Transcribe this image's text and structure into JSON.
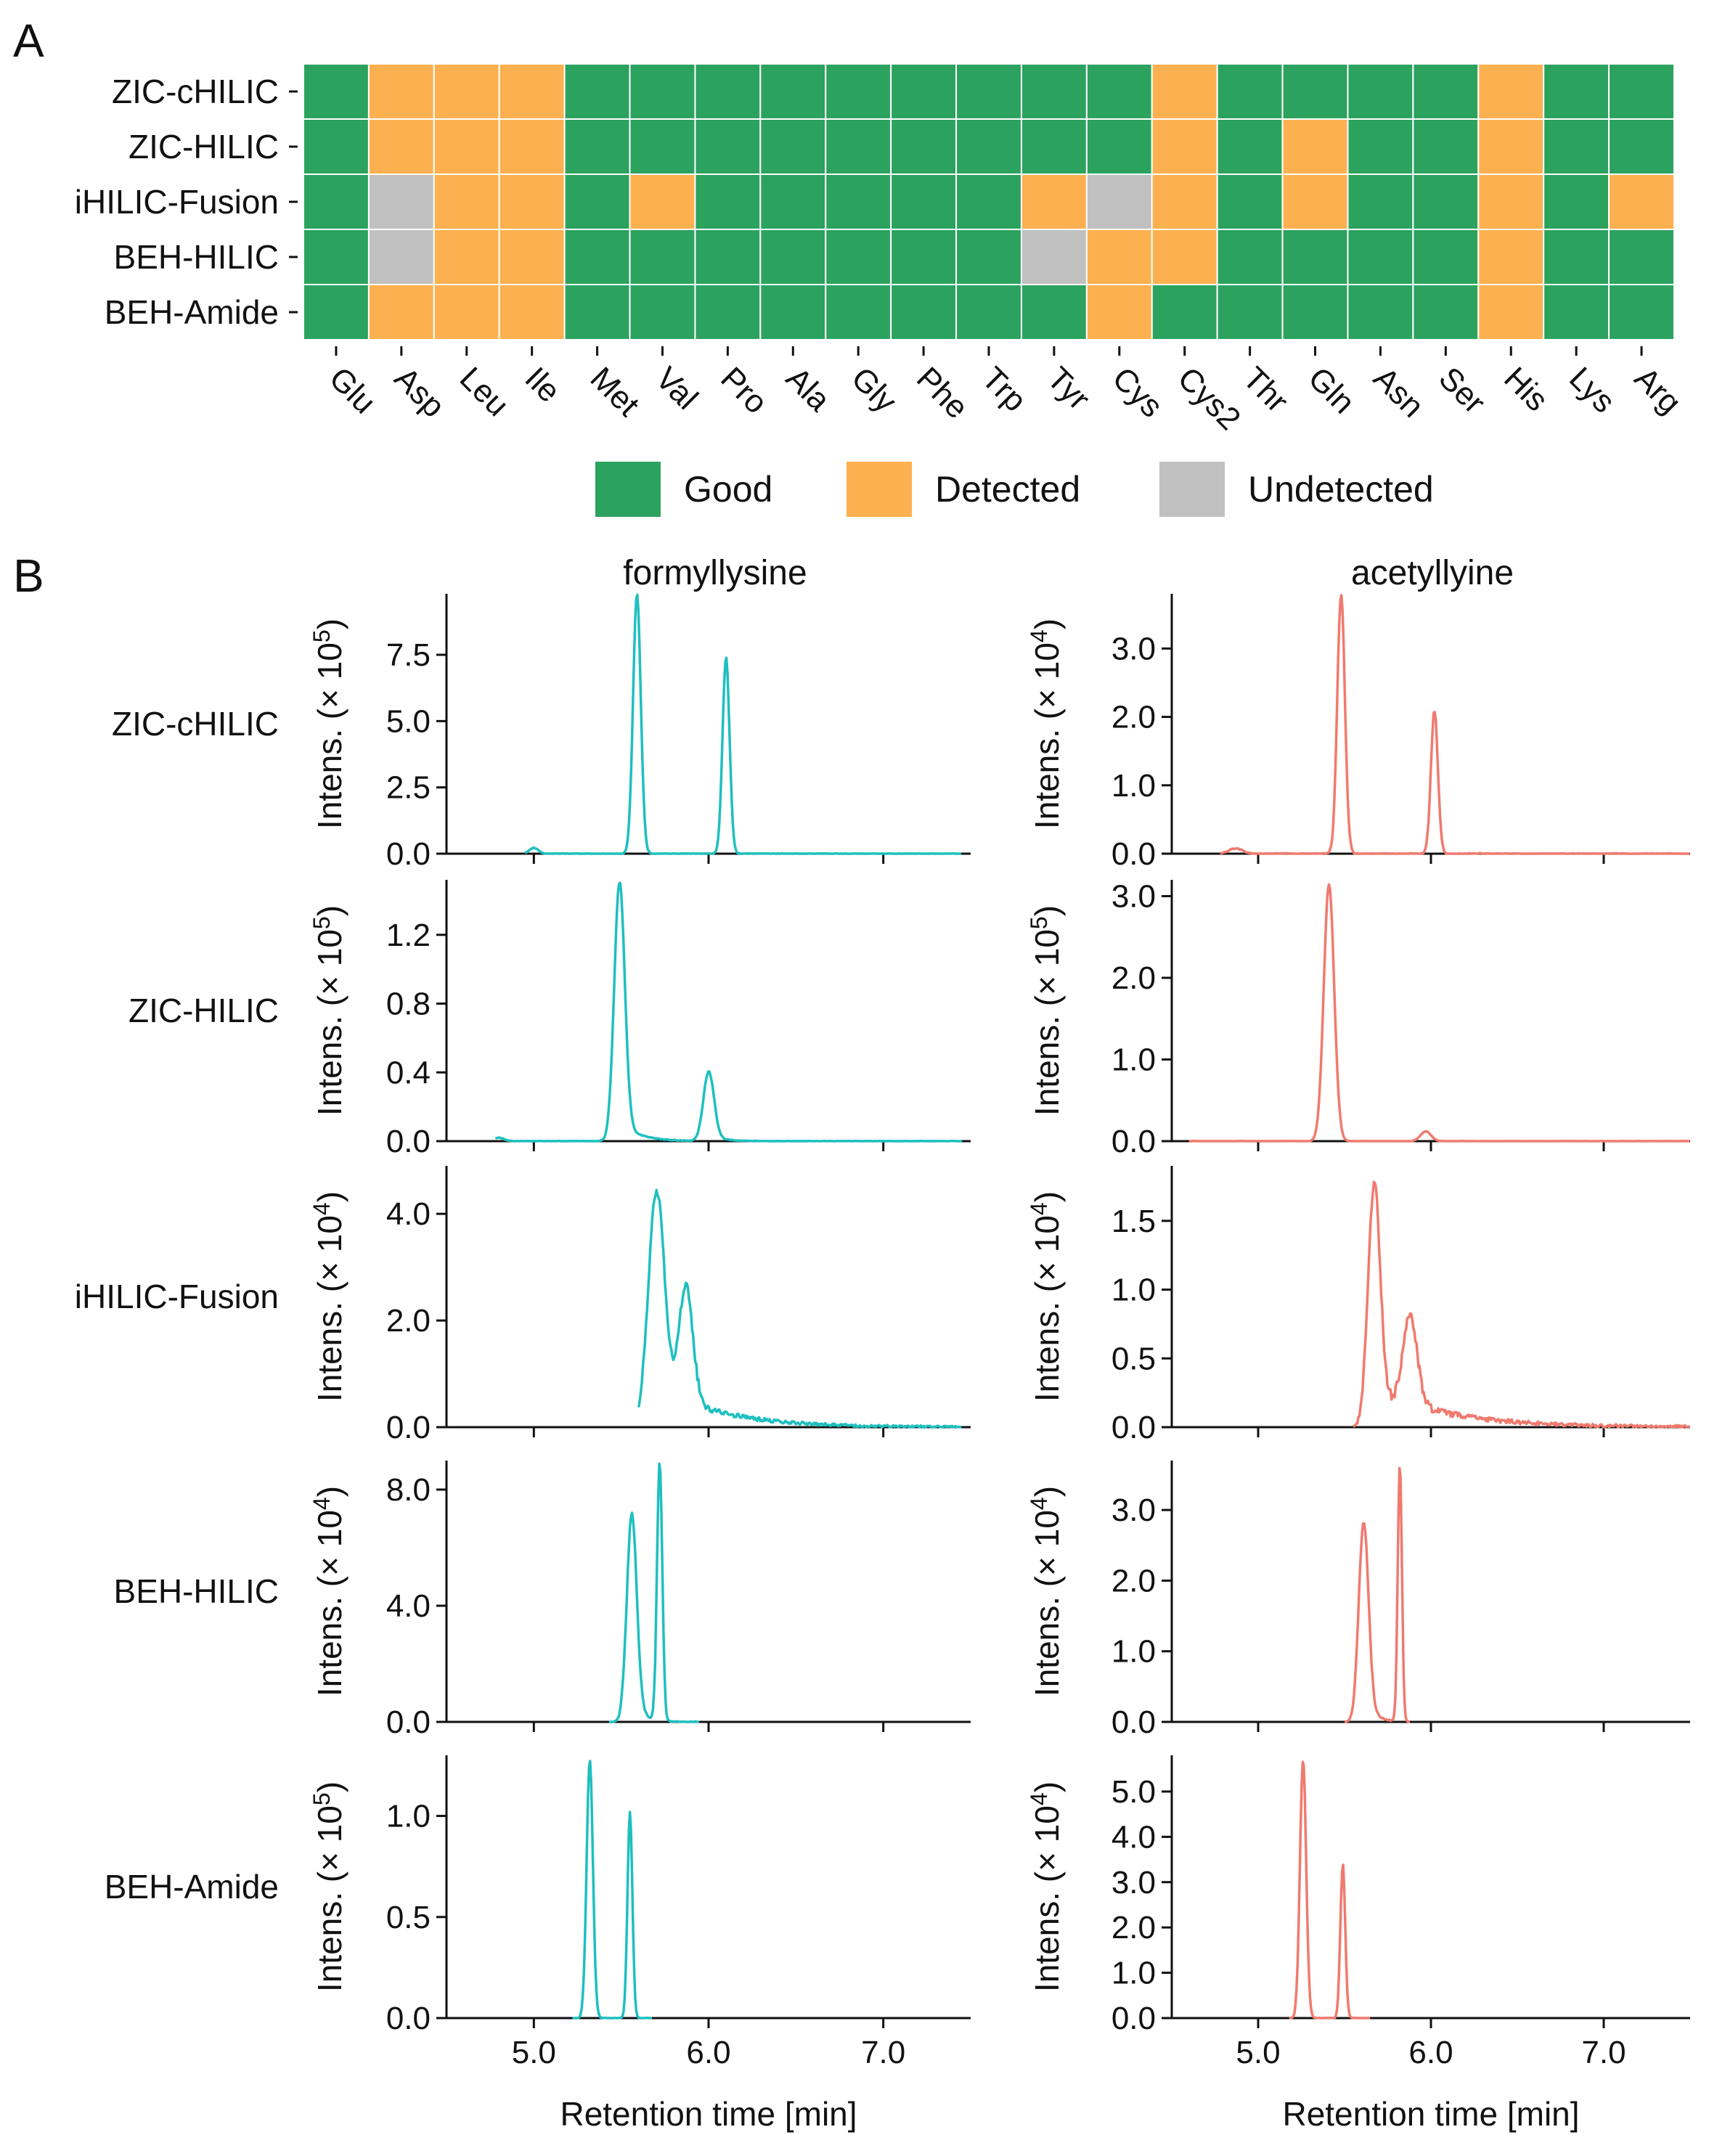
{
  "colors": {
    "good": "#2ca25f",
    "detected": "#fdb050",
    "undetected": "#c0c0c0",
    "formyl": "#1fbfbf",
    "acetyl": "#f07a6e",
    "cell_border": "#ffffff"
  },
  "panel_a": {
    "letter": "A",
    "rows": [
      "ZIC-cHILIC",
      "ZIC-HILIC",
      "iHILIC-Fusion",
      "BEH-HILIC",
      "BEH-Amide"
    ],
    "columns": [
      "Glu",
      "Asp",
      "Leu",
      "Ile",
      "Met",
      "Val",
      "Pro",
      "Ala",
      "Gly",
      "Phe",
      "Trp",
      "Tyr",
      "Cys",
      "Cys2",
      "Thr",
      "Gln",
      "Asn",
      "Ser",
      "His",
      "Lys",
      "Arg"
    ],
    "status": [
      [
        "G",
        "D",
        "D",
        "D",
        "G",
        "G",
        "G",
        "G",
        "G",
        "G",
        "G",
        "G",
        "G",
        "D",
        "G",
        "G",
        "G",
        "G",
        "D",
        "G",
        "G"
      ],
      [
        "G",
        "D",
        "D",
        "D",
        "G",
        "G",
        "G",
        "G",
        "G",
        "G",
        "G",
        "G",
        "G",
        "D",
        "G",
        "D",
        "G",
        "G",
        "D",
        "G",
        "G"
      ],
      [
        "G",
        "U",
        "D",
        "D",
        "G",
        "D",
        "G",
        "G",
        "G",
        "G",
        "G",
        "D",
        "U",
        "D",
        "G",
        "D",
        "G",
        "G",
        "D",
        "G",
        "D"
      ],
      [
        "G",
        "U",
        "D",
        "D",
        "G",
        "G",
        "G",
        "G",
        "G",
        "G",
        "G",
        "U",
        "D",
        "D",
        "G",
        "G",
        "G",
        "G",
        "D",
        "G",
        "G"
      ],
      [
        "G",
        "D",
        "D",
        "D",
        "G",
        "G",
        "G",
        "G",
        "G",
        "G",
        "G",
        "G",
        "D",
        "G",
        "G",
        "G",
        "G",
        "G",
        "D",
        "G",
        "G"
      ]
    ],
    "legend": [
      {
        "key": "G",
        "label": "Good"
      },
      {
        "key": "D",
        "label": "Detected"
      },
      {
        "key": "U",
        "label": "Undetected"
      }
    ]
  },
  "panel_b": {
    "letter": "B",
    "col_titles": [
      "formyllysine",
      "acetyllyine"
    ],
    "xlabel": "Retention time [min]",
    "xlim": [
      4.5,
      7.5
    ],
    "xticks": [
      5.0,
      6.0,
      7.0
    ],
    "xtick_labels": [
      "5.0",
      "6.0",
      "7.0"
    ],
    "row_labels": [
      "ZIC-cHILIC",
      "ZIC-HILIC",
      "iHILIC-Fusion",
      "BEH-HILIC",
      "BEH-Amide"
    ],
    "ylabel_prefix": "Intens. (× 10",
    "ylabel_suffix": ")"
  },
  "chart_data": [
    {
      "type": "heatmap",
      "title": "",
      "rows": [
        "ZIC-cHILIC",
        "ZIC-HILIC",
        "iHILIC-Fusion",
        "BEH-HILIC",
        "BEH-Amide"
      ],
      "columns": [
        "Glu",
        "Asp",
        "Leu",
        "Ile",
        "Met",
        "Val",
        "Pro",
        "Ala",
        "Gly",
        "Phe",
        "Trp",
        "Tyr",
        "Cys",
        "Cys2",
        "Thr",
        "Gln",
        "Asn",
        "Ser",
        "His",
        "Lys",
        "Arg"
      ],
      "categories": [
        "Good",
        "Detected",
        "Undetected"
      ]
    },
    {
      "type": "line",
      "panels": [
        {
          "row": "ZIC-cHILIC",
          "col": "formyllysine",
          "exp": "5",
          "ylim": [
            0,
            9.8
          ],
          "yticks": [
            0,
            2.5,
            5.0,
            7.5
          ],
          "ytick_labels": [
            "0.0",
            "2.5",
            "5.0",
            "7.5"
          ],
          "baseline_start": 4.95,
          "end": 7.45,
          "noise": 0.03,
          "peaks": [
            {
              "t": 5.0,
              "h": 0.22,
              "w": 0.025
            },
            {
              "t": 5.59,
              "h": 9.8,
              "w": 0.022
            },
            {
              "t": 6.1,
              "h": 7.4,
              "w": 0.02
            }
          ]
        },
        {
          "row": "ZIC-cHILIC",
          "col": "acetyllyine",
          "exp": "4",
          "ylim": [
            0,
            3.8
          ],
          "yticks": [
            0,
            1.0,
            2.0,
            3.0
          ],
          "ytick_labels": [
            "0.0",
            "1.0",
            "2.0",
            "3.0"
          ],
          "baseline_start": 4.78,
          "end": 7.5,
          "noise": 0.02,
          "peaks": [
            {
              "t": 4.87,
              "h": 0.08,
              "w": 0.04
            },
            {
              "t": 5.48,
              "h": 3.8,
              "w": 0.022
            },
            {
              "t": 6.02,
              "h": 2.1,
              "w": 0.02
            }
          ]
        },
        {
          "row": "ZIC-HILIC",
          "col": "formyllysine",
          "exp": "5",
          "ylim": [
            0,
            1.52
          ],
          "yticks": [
            0,
            0.4,
            0.8,
            1.2
          ],
          "ytick_labels": [
            "0.0",
            "0.4",
            "0.8",
            "1.2"
          ],
          "baseline_start": 4.78,
          "end": 7.45,
          "noise": 0.004,
          "peaks": [
            {
              "t": 4.8,
              "h": 0.02,
              "w": 0.03
            },
            {
              "t": 5.49,
              "h": 1.5,
              "w": 0.03,
              "tail": 0.1,
              "tailh": 0.13
            },
            {
              "t": 6.0,
              "h": 0.4,
              "w": 0.03,
              "tail": 0.06,
              "tailh": 0.06
            }
          ]
        },
        {
          "row": "ZIC-HILIC",
          "col": "acetyllyine",
          "exp": "5",
          "ylim": [
            0,
            3.2
          ],
          "yticks": [
            0,
            1.0,
            2.0,
            3.0
          ],
          "ytick_labels": [
            "0.0",
            "1.0",
            "2.0",
            "3.0"
          ],
          "baseline_start": 4.6,
          "end": 7.5,
          "noise": 0.005,
          "peaks": [
            {
              "t": 5.41,
              "h": 3.15,
              "w": 0.03
            },
            {
              "t": 5.97,
              "h": 0.12,
              "w": 0.03
            }
          ]
        },
        {
          "row": "iHILIC-Fusion",
          "col": "formyllysine",
          "exp": "4",
          "ylim": [
            0,
            4.9
          ],
          "yticks": [
            0,
            2.0,
            4.0
          ],
          "ytick_labels": [
            "0.0",
            "2.0",
            "4.0"
          ],
          "baseline_start": 5.6,
          "end": 7.45,
          "noise": 0.06,
          "peaks": [
            {
              "t": 5.7,
              "h": 4.4,
              "w": 0.045,
              "tail": 0.35,
              "tailh": 0.8
            },
            {
              "t": 5.87,
              "h": 2.2,
              "w": 0.04
            }
          ]
        },
        {
          "row": "iHILIC-Fusion",
          "col": "acetyllyine",
          "exp": "4",
          "ylim": [
            0,
            1.9
          ],
          "yticks": [
            0,
            0.5,
            1.0,
            1.5
          ],
          "ytick_labels": [
            "0.0",
            "0.5",
            "1.0",
            "1.5"
          ],
          "baseline_start": 5.55,
          "end": 7.5,
          "noise": 0.03,
          "peaks": [
            {
              "t": 5.67,
              "h": 1.75,
              "w": 0.035,
              "tail": 0.4,
              "tailh": 0.3
            },
            {
              "t": 5.88,
              "h": 0.65,
              "w": 0.04
            }
          ]
        },
        {
          "row": "BEH-HILIC",
          "col": "formyllysine",
          "exp": "4",
          "ylim": [
            0,
            9.0
          ],
          "yticks": [
            0,
            4.0,
            8.0
          ],
          "ytick_labels": [
            "0.0",
            "4.0",
            "8.0"
          ],
          "baseline_start": 5.43,
          "end": 5.95,
          "noise": 0.05,
          "peaks": [
            {
              "t": 5.56,
              "h": 7.1,
              "w": 0.028,
              "tail": 0.05,
              "tailh": 1.2
            },
            {
              "t": 5.72,
              "h": 8.9,
              "w": 0.015
            }
          ]
        },
        {
          "row": "BEH-HILIC",
          "col": "acetyllyine",
          "exp": "4",
          "ylim": [
            0,
            3.7
          ],
          "yticks": [
            0,
            1.0,
            2.0,
            3.0
          ],
          "ytick_labels": [
            "0.0",
            "1.0",
            "2.0",
            "3.0"
          ],
          "baseline_start": 5.5,
          "end": 5.88,
          "noise": 0.02,
          "peaks": [
            {
              "t": 5.61,
              "h": 2.8,
              "w": 0.028,
              "tail": 0.05,
              "tailh": 0.5
            },
            {
              "t": 5.82,
              "h": 3.65,
              "w": 0.012
            }
          ]
        },
        {
          "row": "BEH-Amide",
          "col": "formyllysine",
          "exp": "5",
          "ylim": [
            0,
            1.3
          ],
          "yticks": [
            0,
            0.5,
            1.0
          ],
          "ytick_labels": [
            "0.0",
            "0.5",
            "1.0"
          ],
          "baseline_start": 5.22,
          "end": 5.68,
          "noise": 0.004,
          "peaks": [
            {
              "t": 5.32,
              "h": 1.28,
              "w": 0.018
            },
            {
              "t": 5.55,
              "h": 1.02,
              "w": 0.014
            }
          ]
        },
        {
          "row": "BEH-Amide",
          "col": "acetyllyine",
          "exp": "4",
          "ylim": [
            0,
            5.8
          ],
          "yticks": [
            0,
            1.0,
            2.0,
            3.0,
            4.0,
            5.0
          ],
          "ytick_labels": [
            "0.0",
            "1.0",
            "2.0",
            "3.0",
            "4.0",
            "5.0"
          ],
          "baseline_start": 5.18,
          "end": 5.65,
          "noise": 0.02,
          "peaks": [
            {
              "t": 5.26,
              "h": 5.7,
              "w": 0.018
            },
            {
              "t": 5.49,
              "h": 3.4,
              "w": 0.014
            }
          ]
        }
      ]
    }
  ]
}
